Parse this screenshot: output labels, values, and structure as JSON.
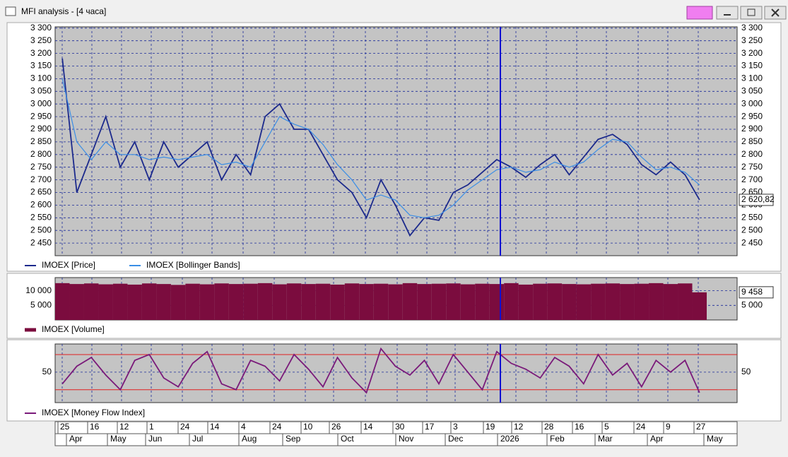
{
  "window": {
    "title": "MFI analysis - [4 часа]"
  },
  "time_axis": {
    "days": [
      25,
      16,
      12,
      1,
      24,
      14,
      4,
      24,
      10,
      26,
      14,
      30,
      17,
      3,
      19,
      12,
      28,
      16,
      5,
      24,
      9,
      27
    ],
    "months": [
      "Apr",
      "May",
      "Jun",
      "Jul",
      "Aug",
      "Sep",
      "Oct",
      "Nov",
      "Dec",
      "2026",
      "Feb",
      "Mar",
      "Apr",
      "May"
    ]
  },
  "chart_data": [
    {
      "type": "line",
      "legend": "bottom-left",
      "grid": true,
      "ylim": [
        2400,
        3305
      ],
      "yticks": [
        {
          "value": 3300,
          "label": "3 300"
        },
        {
          "value": 3250,
          "label": "3 250"
        },
        {
          "value": 3200,
          "label": "3 200"
        },
        {
          "value": 3150,
          "label": "3 150"
        },
        {
          "value": 3100,
          "label": "3 100"
        },
        {
          "value": 3050,
          "label": "3 050"
        },
        {
          "value": 3000,
          "label": "3 000"
        },
        {
          "value": 2950,
          "label": "2 950"
        },
        {
          "value": 2900,
          "label": "2 900"
        },
        {
          "value": 2850,
          "label": "2 850"
        },
        {
          "value": 2800,
          "label": "2 800"
        },
        {
          "value": 2750,
          "label": "2 750"
        },
        {
          "value": 2700,
          "label": "2 700"
        },
        {
          "value": 2650,
          "label": "2 650"
        },
        {
          "value": 2600,
          "label": "2 600"
        },
        {
          "value": 2550,
          "label": "2 550"
        },
        {
          "value": 2500,
          "label": "2 500"
        },
        {
          "value": 2450,
          "label": "2 450"
        }
      ],
      "series": [
        {
          "name": "IMOEX [Price]",
          "color": "#1c2a8c",
          "values": [
            3180,
            2650,
            2800,
            2950,
            2750,
            2850,
            2700,
            2850,
            2750,
            2800,
            2850,
            2700,
            2800,
            2720,
            2950,
            3000,
            2900,
            2900,
            2800,
            2700,
            2650,
            2550,
            2700,
            2600,
            2480,
            2550,
            2540,
            2650,
            2680,
            2730,
            2780,
            2750,
            2710,
            2760,
            2800,
            2720,
            2790,
            2860,
            2880,
            2840,
            2760,
            2720,
            2770,
            2720,
            2620.82
          ],
          "value_labels": [
            null,
            null,
            null,
            null,
            null,
            null,
            null,
            null,
            null,
            null,
            null,
            null,
            null,
            null,
            null,
            null,
            null,
            null,
            null,
            null,
            null,
            null,
            null,
            null,
            null,
            null,
            null,
            null,
            null,
            null,
            null,
            null,
            null,
            null,
            null,
            null,
            null,
            null,
            null,
            null,
            null,
            null,
            null,
            null,
            "2 620,82"
          ]
        },
        {
          "name": "IMOEX [Bollinger Bands]",
          "color": "#3a8ee6",
          "values": [
            3100,
            2850,
            2780,
            2850,
            2800,
            2800,
            2780,
            2790,
            2780,
            2790,
            2800,
            2760,
            2770,
            2750,
            2850,
            2950,
            2920,
            2900,
            2840,
            2760,
            2700,
            2620,
            2640,
            2620,
            2560,
            2550,
            2560,
            2600,
            2660,
            2700,
            2740,
            2750,
            2730,
            2740,
            2770,
            2750,
            2770,
            2820,
            2860,
            2850,
            2790,
            2740,
            2750,
            2730,
            2680
          ]
        }
      ]
    },
    {
      "type": "bar",
      "legend": "bottom-left",
      "grid": true,
      "ylim": [
        0,
        14500
      ],
      "yticks": [
        {
          "value": 10000,
          "label": "10 000"
        },
        {
          "value": 5000,
          "label": "5 000"
        }
      ],
      "series": [
        {
          "name": "IMOEX [Volume]",
          "color": "#7b0c3e",
          "values": [
            12600,
            12300,
            12500,
            12200,
            12400,
            12100,
            12500,
            12300,
            12000,
            12400,
            12200,
            12500,
            12300,
            12400,
            12600,
            12200,
            12500,
            12300,
            12400,
            12100,
            12500,
            12300,
            12400,
            12200,
            12600,
            12300,
            12400,
            12500,
            12200,
            12400,
            12300,
            12600,
            12100,
            12400,
            12500,
            12300,
            12200,
            12400,
            12500,
            12300,
            12400,
            12600,
            12300,
            12500,
            9458
          ],
          "value_labels": [
            null,
            null,
            null,
            null,
            null,
            null,
            null,
            null,
            null,
            null,
            null,
            null,
            null,
            null,
            null,
            null,
            null,
            null,
            null,
            null,
            null,
            null,
            null,
            null,
            null,
            null,
            null,
            null,
            null,
            null,
            null,
            null,
            null,
            null,
            null,
            null,
            null,
            null,
            null,
            null,
            null,
            null,
            null,
            null,
            "9 458"
          ]
        }
      ]
    },
    {
      "type": "line",
      "legend": "bottom-left",
      "grid": true,
      "ylim": [
        -2,
        98
      ],
      "yticks": [
        50
      ],
      "hlines": [
        20,
        80
      ],
      "hline_color": "#e02020",
      "series": [
        {
          "name": "IMOEX [Money Flow Index]",
          "color": "#7a1a7a",
          "values": [
            30,
            60,
            75,
            45,
            20,
            70,
            80,
            40,
            25,
            65,
            85,
            30,
            20,
            70,
            60,
            35,
            80,
            55,
            25,
            75,
            40,
            15,
            90,
            60,
            45,
            70,
            30,
            80,
            50,
            20,
            85,
            65,
            55,
            40,
            75,
            60,
            30,
            80,
            45,
            65,
            25,
            70,
            50,
            70,
            15
          ]
        }
      ]
    }
  ]
}
